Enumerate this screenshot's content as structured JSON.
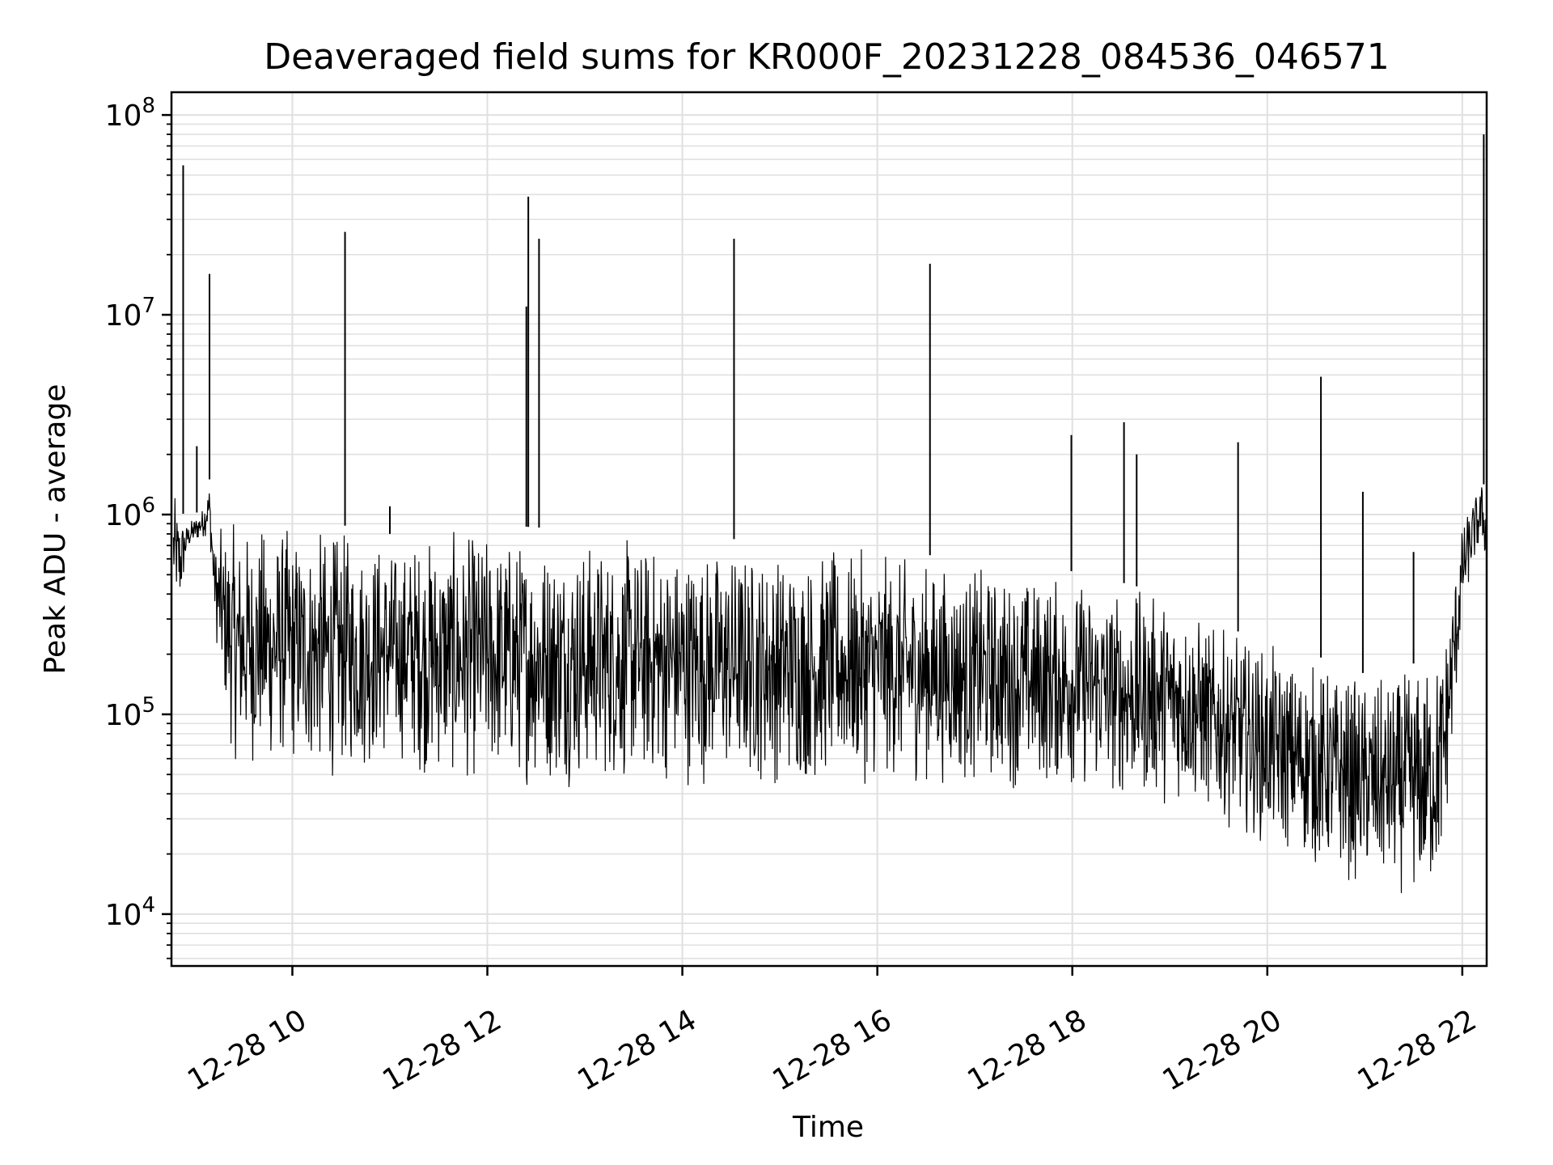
{
  "chart_data": {
    "type": "line",
    "title": "Deaveraged field sums for KR000F_20231228_084536_046571",
    "xlabel": "Time",
    "ylabel": "Peak ADU - average",
    "yscale": "log",
    "grid": true,
    "legend": "none",
    "colors": {
      "line": "#000000",
      "grid": "#e0e0e0",
      "axes": "#000000"
    },
    "x_date": "2023-12-28",
    "xlim_hours": [
      8.76,
      22.25
    ],
    "ylim": [
      5500,
      130000000
    ],
    "x_ticks": [
      {
        "hour": 10,
        "label": "12-28 10"
      },
      {
        "hour": 12,
        "label": "12-28 12"
      },
      {
        "hour": 14,
        "label": "12-28 14"
      },
      {
        "hour": 16,
        "label": "12-28 16"
      },
      {
        "hour": 18,
        "label": "12-28 18"
      },
      {
        "hour": 20,
        "label": "12-28 20"
      },
      {
        "hour": 22,
        "label": "12-28 22"
      }
    ],
    "y_ticks": [
      {
        "value": 10000,
        "base": "10",
        "exp": "4"
      },
      {
        "value": 100000,
        "base": "10",
        "exp": "5"
      },
      {
        "value": 1000000,
        "base": "10",
        "exp": "6"
      },
      {
        "value": 10000000,
        "base": "10",
        "exp": "7"
      },
      {
        "value": 100000000,
        "base": "10",
        "exp": "8"
      }
    ],
    "series": [
      {
        "x_hours": [
          8.78,
          8.85,
          8.92,
          9.0,
          9.08,
          9.15,
          9.2,
          9.25,
          9.3,
          9.35,
          9.4,
          9.5,
          9.6,
          9.7,
          9.8,
          9.9,
          10.0,
          10.1,
          10.2,
          10.3,
          10.4,
          10.5,
          10.6,
          10.7,
          10.8,
          10.9,
          11.0,
          11.05,
          11.1,
          11.2,
          11.3,
          11.4,
          11.5,
          11.6,
          11.7,
          11.8,
          11.9,
          12.0,
          12.1,
          12.2,
          12.3,
          12.4,
          12.5,
          12.6,
          12.7,
          12.8,
          12.9,
          13.0,
          13.2,
          13.4,
          13.6,
          13.8,
          14.0,
          14.2,
          14.4,
          14.6,
          14.8,
          15.0,
          15.2,
          15.4,
          15.6,
          15.8,
          16.0,
          16.2,
          16.4,
          16.6,
          16.8,
          16.95,
          17.0,
          17.2,
          17.4,
          17.6,
          17.8,
          18.0,
          18.2,
          18.4,
          18.6,
          18.8,
          19.0,
          19.2,
          19.4,
          19.6,
          19.8,
          20.0,
          20.2,
          20.4,
          20.6,
          20.8,
          21.0,
          21.2,
          21.4,
          21.6,
          21.65,
          21.7,
          21.8,
          21.9,
          22.0,
          22.1,
          22.2,
          22.25
        ],
        "upper": [
          1300000,
          1100000,
          900000,
          1000000,
          1100000,
          1500000,
          700000,
          900000,
          900000,
          950000,
          950000,
          950000,
          980000,
          960000,
          950000,
          950000,
          940000,
          930000,
          920000,
          900000,
          900000,
          880000,
          880000,
          860000,
          850000,
          850000,
          800000,
          750000,
          700000,
          850000,
          870000,
          880000,
          880000,
          870000,
          860000,
          860000,
          870000,
          880000,
          880000,
          880000,
          870000,
          870000,
          860000,
          860000,
          850000,
          850000,
          840000,
          830000,
          820000,
          810000,
          800000,
          790000,
          780000,
          770000,
          760000,
          750000,
          740000,
          730000,
          720000,
          710000,
          700000,
          690000,
          680000,
          660000,
          640000,
          620000,
          600000,
          580000,
          580000,
          560000,
          550000,
          540000,
          540000,
          520000,
          500000,
          480000,
          440000,
          430000,
          430000,
          380000,
          300000,
          270000,
          250000,
          230000,
          210000,
          200000,
          190000,
          170000,
          160000,
          160000,
          170000,
          190000,
          200000,
          220000,
          250000,
          500000,
          900000,
          1200000,
          1500000,
          1300000
        ],
        "lower": [
          350000,
          300000,
          650000,
          700000,
          750000,
          800000,
          300000,
          150000,
          100000,
          70000,
          55000,
          50000,
          52000,
          50000,
          50000,
          52000,
          50000,
          48000,
          47000,
          46000,
          45000,
          47000,
          48000,
          48000,
          50000,
          52000,
          52000,
          55000,
          56000,
          50000,
          48000,
          45000,
          45000,
          44000,
          43000,
          43000,
          43000,
          42000,
          42000,
          42000,
          42000,
          42000,
          42000,
          42000,
          42000,
          42000,
          42000,
          42000,
          42000,
          42000,
          42000,
          42000,
          42000,
          42000,
          42000,
          42000,
          42000,
          42000,
          42000,
          42000,
          43000,
          43000,
          43000,
          43000,
          43000,
          43000,
          42000,
          42000,
          42000,
          42000,
          41000,
          41000,
          40000,
          40000,
          38000,
          36000,
          35000,
          35000,
          34000,
          33000,
          30000,
          27000,
          24000,
          21000,
          19000,
          17000,
          15000,
          14000,
          13000,
          12000,
          12000,
          11000,
          11000,
          11000,
          15000,
          60000,
          300000,
          500000,
          700000,
          500000
        ],
        "spikes": [
          {
            "hour": 8.88,
            "value": 56000000
          },
          {
            "hour": 9.15,
            "value": 16000000
          },
          {
            "hour": 9.02,
            "value": 2200000
          },
          {
            "hour": 10.54,
            "value": 26000000
          },
          {
            "hour": 11.0,
            "value": 1100000
          },
          {
            "hour": 12.4,
            "value": 11000000
          },
          {
            "hour": 12.42,
            "value": 39000000
          },
          {
            "hour": 12.53,
            "value": 24000000
          },
          {
            "hour": 14.53,
            "value": 24000000
          },
          {
            "hour": 16.54,
            "value": 18000000
          },
          {
            "hour": 17.99,
            "value": 2500000
          },
          {
            "hour": 18.53,
            "value": 2900000
          },
          {
            "hour": 18.66,
            "value": 2000000
          },
          {
            "hour": 19.7,
            "value": 2300000
          },
          {
            "hour": 20.55,
            "value": 4900000
          },
          {
            "hour": 20.98,
            "value": 1300000
          },
          {
            "hour": 21.5,
            "value": 650000
          },
          {
            "hour": 22.22,
            "value": 80000000
          }
        ]
      }
    ]
  }
}
